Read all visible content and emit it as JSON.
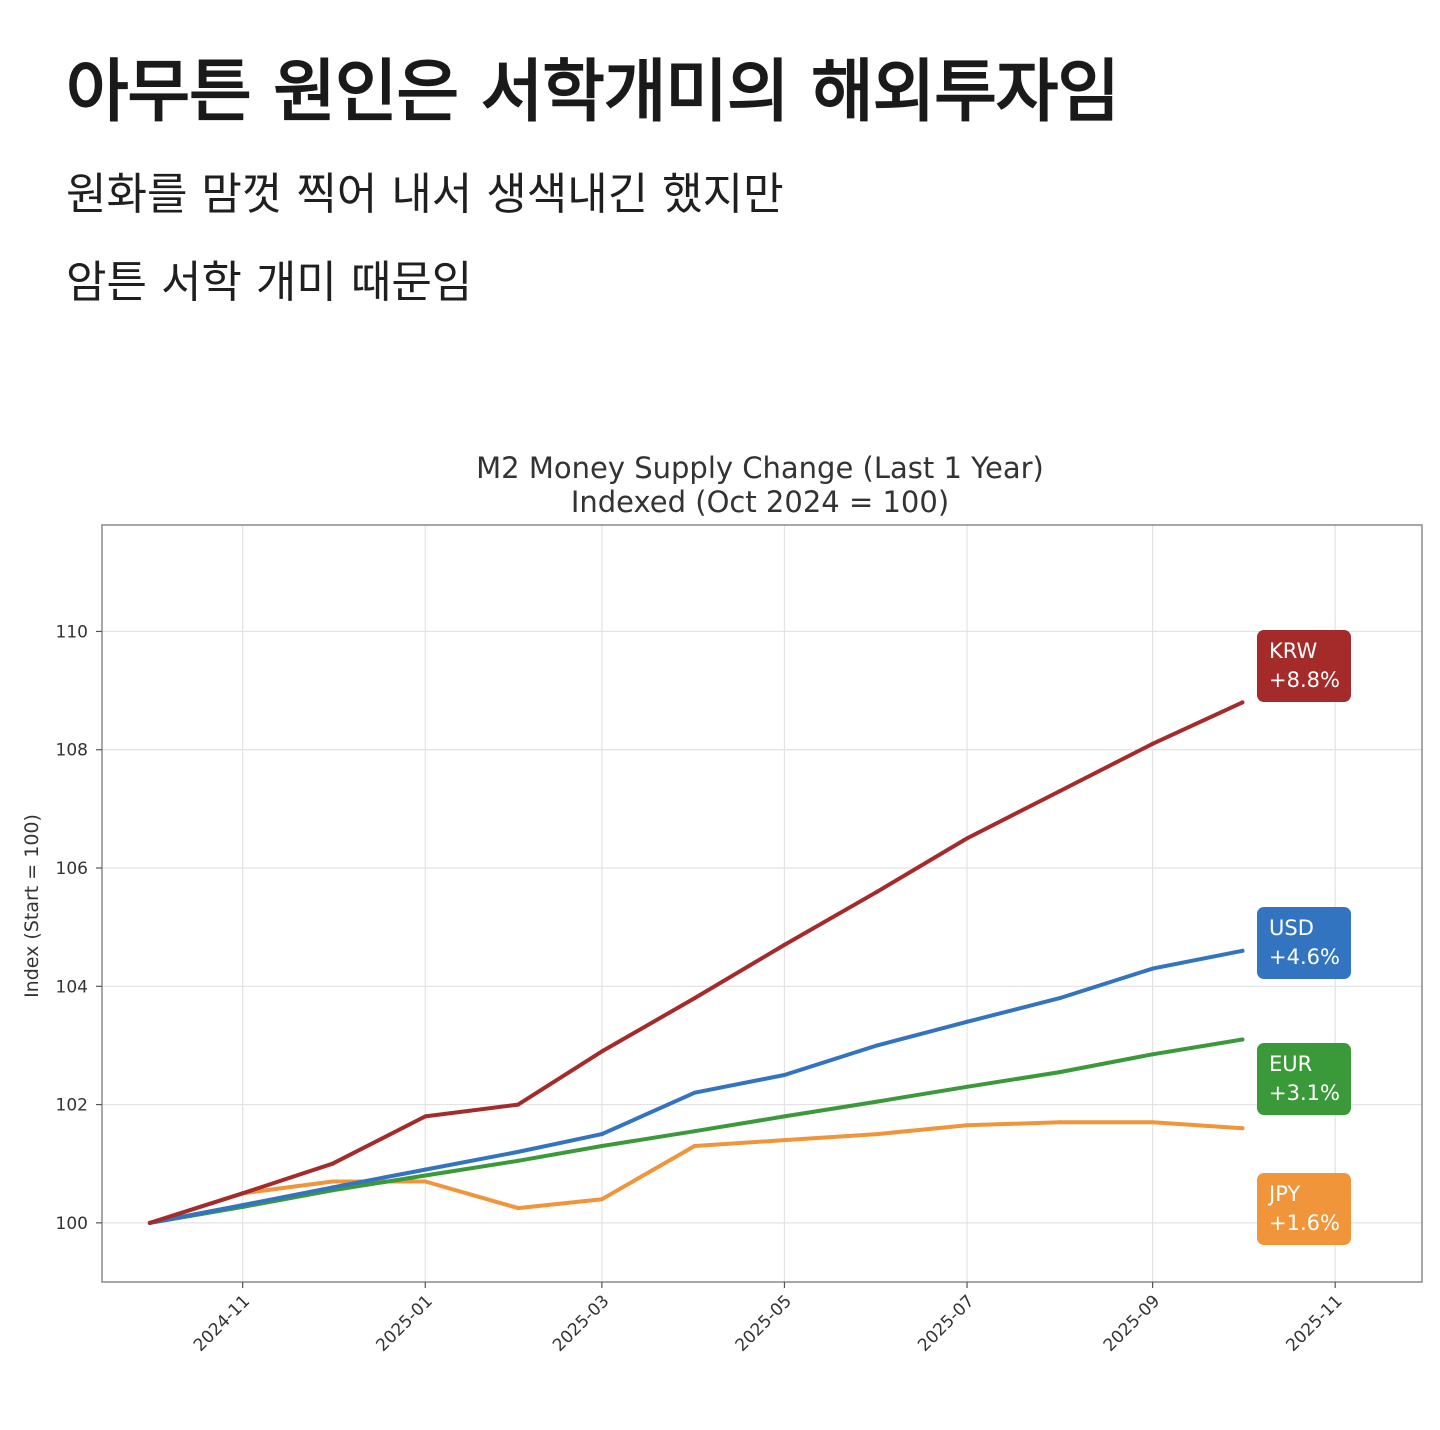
{
  "post": {
    "headline": "아무튼 원인은 서학개미의 해외투자임",
    "line1": "원화를 맘껏 찍어 내서 생색내긴 했지만",
    "line2": "암튼 서학 개미 때문임"
  },
  "chart_data": {
    "type": "line",
    "title": "M2 Money Supply Change (Last 1 Year)",
    "subtitle": "Indexed (Oct 2024 = 100)",
    "xlabel": "",
    "ylabel": "Index (Start = 100)",
    "x": [
      "2024-10",
      "2024-11",
      "2024-12",
      "2025-01",
      "2025-02",
      "2025-03",
      "2025-04",
      "2025-05",
      "2025-06",
      "2025-07",
      "2025-08",
      "2025-09",
      "2025-10"
    ],
    "xticks": [
      "2024-11",
      "2025-01",
      "2025-03",
      "2025-05",
      "2025-07",
      "2025-09",
      "2025-11"
    ],
    "yticks": [
      100,
      102,
      104,
      106,
      108,
      110
    ],
    "ylim": [
      99.0,
      111.8
    ],
    "xlim": [
      "2024-09-15",
      "2025-11-30"
    ],
    "grid": true,
    "series": [
      {
        "name": "KRW",
        "label_lines": [
          "KRW",
          "+8.8%"
        ],
        "color": "#a52a2a",
        "values": [
          100,
          100.5,
          101.0,
          101.8,
          102.0,
          102.9,
          103.8,
          104.7,
          105.6,
          106.5,
          107.3,
          108.1,
          108.8
        ]
      },
      {
        "name": "USD",
        "label_lines": [
          "USD",
          "+4.6%"
        ],
        "color": "#3274c0",
        "values": [
          100,
          100.3,
          100.6,
          100.9,
          101.2,
          101.5,
          102.2,
          102.5,
          103.0,
          103.4,
          103.8,
          104.3,
          104.6
        ]
      },
      {
        "name": "EUR",
        "label_lines": [
          "EUR",
          "+3.1%"
        ],
        "color": "#3a9a3a",
        "values": [
          100,
          100.27,
          100.55,
          100.8,
          101.05,
          101.3,
          101.55,
          101.8,
          102.05,
          102.3,
          102.55,
          102.85,
          103.1
        ]
      },
      {
        "name": "JPY",
        "label_lines": [
          "JPY",
          "+1.6%"
        ],
        "color": "#f0953a",
        "values": [
          100,
          100.5,
          100.7,
          100.7,
          100.25,
          100.4,
          101.3,
          101.4,
          101.5,
          101.65,
          101.7,
          101.7,
          101.6
        ]
      }
    ]
  }
}
